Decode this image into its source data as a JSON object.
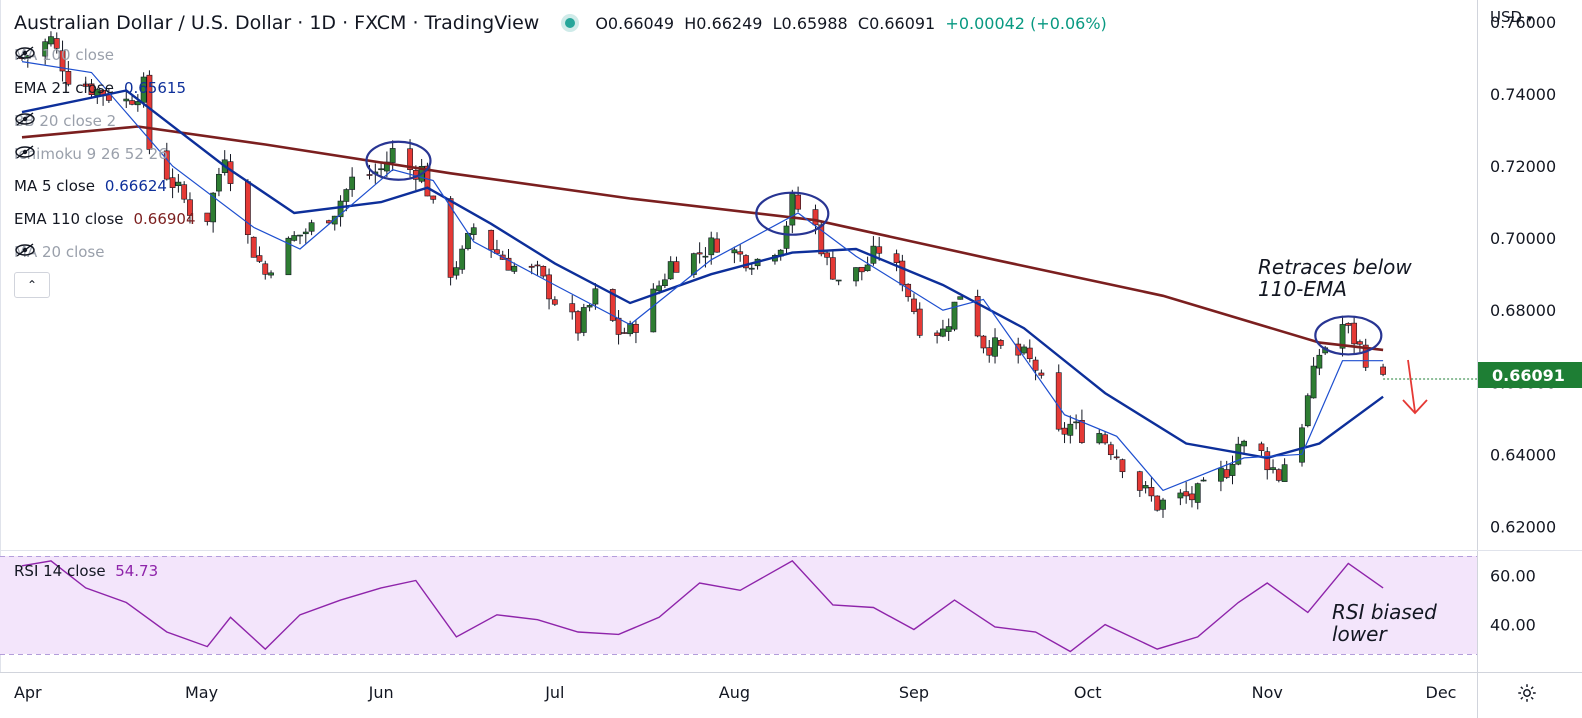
{
  "header": {
    "title": "Australian Dollar / U.S. Dollar · 1D · FXCM · TradingView",
    "open": "O0.66049",
    "high": "H0.66249",
    "low": "L0.65988",
    "close": "C0.66091",
    "change": "+0.00042 (+0.06%)"
  },
  "currency": "USD",
  "indicators": [
    {
      "label": "MA 100 close",
      "value": "",
      "hidden": true
    },
    {
      "label": "EMA 21 close",
      "value": "0.65615",
      "color": "#0d2f9a",
      "hidden": false
    },
    {
      "label": "BB 20 close 2",
      "value": "",
      "hidden": true
    },
    {
      "label": "Ichimoku 9 26 52 26",
      "value": "",
      "hidden": true
    },
    {
      "label": "MA 5 close",
      "value": "0.66624",
      "color": "#0d2f9a",
      "hidden": false
    },
    {
      "label": "EMA 110 close",
      "value": "0.66904",
      "color": "#7b1f1f",
      "hidden": false
    },
    {
      "label": "MA 20 close",
      "value": "",
      "hidden": true
    }
  ],
  "rsi": {
    "label": "RSI 14 close",
    "value": "54.73",
    "color": "#8e24aa"
  },
  "last_price": "0.66091",
  "annotations": {
    "retrace": [
      "Retraces below",
      "110-EMA"
    ],
    "rsi": [
      "RSI biased",
      "lower"
    ]
  },
  "colors": {
    "up": "#2e7d32",
    "down": "#e53935",
    "ema110": "#7b1f1f",
    "ema21": "#0d2f9a",
    "ma5": "#1e4fcf",
    "rsi_line": "#8e24aa",
    "rsi_band": "#f3e5fb",
    "price_badge": "#1e7e34"
  },
  "chart_data": {
    "type": "candlestick",
    "price_axis": {
      "ticks": [
        "0.76000",
        "0.74000",
        "0.72000",
        "0.70000",
        "0.68000",
        "0.66000",
        "0.64000",
        "0.62000"
      ],
      "ylim": [
        0.614,
        0.765
      ]
    },
    "rsi_axis": {
      "ticks": [
        "60.00",
        "40.00"
      ],
      "ylim": [
        28,
        68
      ]
    },
    "x_tick_labels": [
      "Apr",
      "May",
      "Jun",
      "Jul",
      "Aug",
      "Sep",
      "Oct",
      "Nov",
      "Dec"
    ],
    "close_path": [
      [
        "2022-03-31",
        0.75
      ],
      [
        "2022-04-05",
        0.755
      ],
      [
        "2022-04-08",
        0.745
      ],
      [
        "2022-04-13",
        0.741
      ],
      [
        "2022-04-18",
        0.738
      ],
      [
        "2022-04-21",
        0.742
      ],
      [
        "2022-04-22",
        0.725
      ],
      [
        "2022-04-27",
        0.713
      ],
      [
        "2022-04-29",
        0.708
      ],
      [
        "2022-05-02",
        0.706
      ],
      [
        "2022-05-05",
        0.724
      ],
      [
        "2022-05-09",
        0.7
      ],
      [
        "2022-05-12",
        0.69
      ],
      [
        "2022-05-13",
        0.693
      ],
      [
        "2022-05-17",
        0.7
      ],
      [
        "2022-05-20",
        0.703
      ],
      [
        "2022-05-24",
        0.708
      ],
      [
        "2022-05-27",
        0.716
      ],
      [
        "2022-06-01",
        0.719
      ],
      [
        "2022-06-03",
        0.724
      ],
      [
        "2022-06-06",
        0.719
      ],
      [
        "2022-06-08",
        0.719
      ],
      [
        "2022-06-10",
        0.708
      ],
      [
        "2022-06-13",
        0.691
      ],
      [
        "2022-06-15",
        0.695
      ],
      [
        "2022-06-17",
        0.703
      ],
      [
        "2022-06-21",
        0.696
      ],
      [
        "2022-06-24",
        0.692
      ],
      [
        "2022-06-28",
        0.69
      ],
      [
        "2022-07-01",
        0.683
      ],
      [
        "2022-07-05",
        0.675
      ],
      [
        "2022-07-08",
        0.684
      ],
      [
        "2022-07-12",
        0.674
      ],
      [
        "2022-07-14",
        0.674
      ],
      [
        "2022-07-18",
        0.684
      ],
      [
        "2022-07-21",
        0.693
      ],
      [
        "2022-07-25",
        0.695
      ],
      [
        "2022-07-29",
        0.699
      ],
      [
        "2022-08-02",
        0.695
      ],
      [
        "2022-08-05",
        0.694
      ],
      [
        "2022-08-09",
        0.699
      ],
      [
        "2022-08-11",
        0.71
      ],
      [
        "2022-08-15",
        0.703
      ],
      [
        "2022-08-17",
        0.693
      ],
      [
        "2022-08-19",
        0.689
      ],
      [
        "2022-08-23",
        0.691
      ],
      [
        "2022-08-26",
        0.697
      ],
      [
        "2022-08-30",
        0.689
      ],
      [
        "2022-09-02",
        0.676
      ],
      [
        "2022-09-06",
        0.674
      ],
      [
        "2022-09-09",
        0.685
      ],
      [
        "2022-09-13",
        0.671
      ],
      [
        "2022-09-16",
        0.669
      ],
      [
        "2022-09-20",
        0.667
      ],
      [
        "2022-09-22",
        0.664
      ],
      [
        "2022-09-26",
        0.645
      ],
      [
        "2022-09-28",
        0.648
      ],
      [
        "2022-09-30",
        0.646
      ],
      [
        "2022-10-03",
        0.646
      ],
      [
        "2022-10-06",
        0.64
      ],
      [
        "2022-10-10",
        0.631
      ],
      [
        "2022-10-13",
        0.626
      ],
      [
        "2022-10-17",
        0.628
      ],
      [
        "2022-10-19",
        0.628
      ],
      [
        "2022-10-21",
        0.63
      ],
      [
        "2022-10-25",
        0.636
      ],
      [
        "2022-10-27",
        0.643
      ],
      [
        "2022-10-31",
        0.64
      ],
      [
        "2022-11-03",
        0.634
      ],
      [
        "2022-11-07",
        0.649
      ],
      [
        "2022-11-10",
        0.668
      ],
      [
        "2022-11-14",
        0.676
      ],
      [
        "2022-11-16",
        0.672
      ],
      [
        "2022-11-18",
        0.667
      ],
      [
        "2022-11-21",
        0.66
      ]
    ],
    "rsi_path": [
      [
        "2022-03-31",
        64
      ],
      [
        "2022-04-05",
        66
      ],
      [
        "2022-04-11",
        55
      ],
      [
        "2022-04-18",
        49
      ],
      [
        "2022-04-25",
        37
      ],
      [
        "2022-05-02",
        31
      ],
      [
        "2022-05-06",
        43
      ],
      [
        "2022-05-12",
        30
      ],
      [
        "2022-05-18",
        44
      ],
      [
        "2022-05-25",
        50
      ],
      [
        "2022-06-01",
        55
      ],
      [
        "2022-06-07",
        58
      ],
      [
        "2022-06-14",
        35
      ],
      [
        "2022-06-21",
        44
      ],
      [
        "2022-06-28",
        42
      ],
      [
        "2022-07-05",
        37
      ],
      [
        "2022-07-12",
        36
      ],
      [
        "2022-07-19",
        43
      ],
      [
        "2022-07-26",
        57
      ],
      [
        "2022-08-02",
        54
      ],
      [
        "2022-08-11",
        66
      ],
      [
        "2022-08-18",
        48
      ],
      [
        "2022-08-25",
        47
      ],
      [
        "2022-09-01",
        38
      ],
      [
        "2022-09-08",
        50
      ],
      [
        "2022-09-15",
        39
      ],
      [
        "2022-09-22",
        37
      ],
      [
        "2022-09-28",
        29
      ],
      [
        "2022-10-04",
        40
      ],
      [
        "2022-10-13",
        30
      ],
      [
        "2022-10-20",
        35
      ],
      [
        "2022-10-27",
        49
      ],
      [
        "2022-11-01",
        57
      ],
      [
        "2022-11-08",
        45
      ],
      [
        "2022-11-15",
        65
      ],
      [
        "2022-11-21",
        55
      ]
    ],
    "ema110_path": [
      [
        "2022-03-31",
        0.728
      ],
      [
        "2022-04-20",
        0.731
      ],
      [
        "2022-05-12",
        0.726
      ],
      [
        "2022-06-13",
        0.718
      ],
      [
        "2022-07-14",
        0.711
      ],
      [
        "2022-08-15",
        0.705
      ],
      [
        "2022-09-15",
        0.694
      ],
      [
        "2022-10-14",
        0.684
      ],
      [
        "2022-11-10",
        0.671
      ],
      [
        "2022-11-21",
        0.669
      ]
    ],
    "ema21_path": [
      [
        "2022-03-31",
        0.735
      ],
      [
        "2022-04-18",
        0.741
      ],
      [
        "2022-05-05",
        0.72
      ],
      [
        "2022-05-17",
        0.707
      ],
      [
        "2022-06-01",
        0.71
      ],
      [
        "2022-06-09",
        0.714
      ],
      [
        "2022-06-20",
        0.704
      ],
      [
        "2022-07-01",
        0.693
      ],
      [
        "2022-07-14",
        0.682
      ],
      [
        "2022-07-28",
        0.69
      ],
      [
        "2022-08-11",
        0.696
      ],
      [
        "2022-08-22",
        0.697
      ],
      [
        "2022-09-06",
        0.687
      ],
      [
        "2022-09-20",
        0.675
      ],
      [
        "2022-10-04",
        0.657
      ],
      [
        "2022-10-18",
        0.643
      ],
      [
        "2022-11-01",
        0.639
      ],
      [
        "2022-11-10",
        0.643
      ],
      [
        "2022-11-21",
        0.656
      ]
    ],
    "ma5_path": [
      [
        "2022-03-31",
        0.749
      ],
      [
        "2022-04-12",
        0.746
      ],
      [
        "2022-04-26",
        0.72
      ],
      [
        "2022-05-10",
        0.703
      ],
      [
        "2022-05-18",
        0.697
      ],
      [
        "2022-06-03",
        0.719
      ],
      [
        "2022-06-10",
        0.716
      ],
      [
        "2022-06-17",
        0.699
      ],
      [
        "2022-07-01",
        0.687
      ],
      [
        "2022-07-14",
        0.676
      ],
      [
        "2022-07-28",
        0.694
      ],
      [
        "2022-08-12",
        0.707
      ],
      [
        "2022-08-22",
        0.695
      ],
      [
        "2022-09-06",
        0.68
      ],
      [
        "2022-09-13",
        0.683
      ],
      [
        "2022-09-27",
        0.651
      ],
      [
        "2022-10-06",
        0.645
      ],
      [
        "2022-10-14",
        0.63
      ],
      [
        "2022-10-28",
        0.639
      ],
      [
        "2022-11-07",
        0.64
      ],
      [
        "2022-11-14",
        0.666
      ],
      [
        "2022-11-21",
        0.666
      ]
    ]
  }
}
